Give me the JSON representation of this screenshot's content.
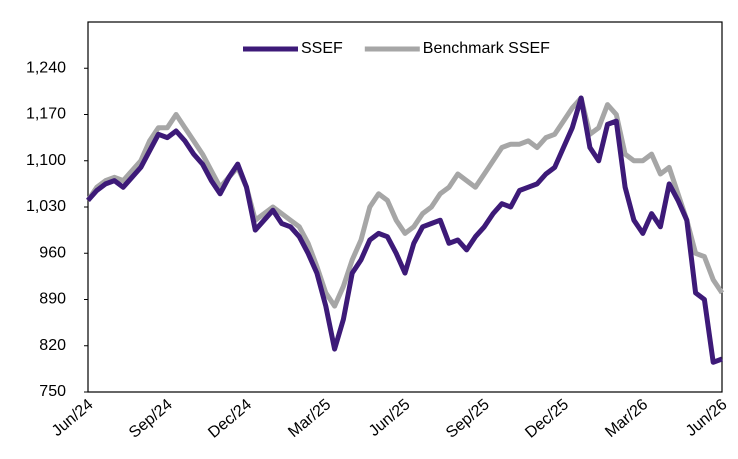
{
  "chart_data": {
    "type": "line",
    "categories": [
      "Jun/24",
      null,
      null,
      null,
      null,
      null,
      null,
      null,
      null,
      "Sep/24",
      null,
      null,
      null,
      null,
      null,
      null,
      null,
      null,
      "Dec/24",
      null,
      null,
      null,
      null,
      null,
      null,
      null,
      null,
      "Mar/25",
      null,
      null,
      null,
      null,
      null,
      null,
      null,
      null,
      "Jun/25",
      null,
      null,
      null,
      null,
      null,
      null,
      null,
      null,
      "Sep/25",
      null,
      null,
      null,
      null,
      null,
      null,
      null,
      null,
      "Dec/25",
      null,
      null,
      null,
      null,
      null,
      null,
      null,
      null,
      "Mar/26",
      null,
      null,
      null,
      null,
      null,
      null,
      null,
      null,
      "Jun/26"
    ],
    "series": [
      {
        "name": "SSEF",
        "color": "#3d1a78",
        "values": [
          1040,
          1055,
          1065,
          1070,
          1060,
          1075,
          1090,
          1115,
          1140,
          1135,
          1145,
          1130,
          1110,
          1095,
          1070,
          1050,
          1075,
          1095,
          1060,
          995,
          1010,
          1025,
          1005,
          1000,
          985,
          960,
          930,
          880,
          815,
          860,
          930,
          950,
          980,
          990,
          985,
          960,
          930,
          975,
          1000,
          1005,
          1010,
          975,
          980,
          965,
          985,
          1000,
          1020,
          1035,
          1030,
          1055,
          1060,
          1065,
          1080,
          1090,
          1120,
          1150,
          1195,
          1120,
          1100,
          1155,
          1160,
          1060,
          1010,
          990,
          1020,
          1000,
          1065,
          1040,
          1010,
          900,
          890,
          795,
          800
        ]
      },
      {
        "name": "Benchmark SSEF",
        "color": "#a6a6a6",
        "values": [
          1040,
          1060,
          1070,
          1075,
          1070,
          1085,
          1100,
          1130,
          1150,
          1150,
          1170,
          1150,
          1130,
          1110,
          1085,
          1060,
          1075,
          1090,
          1060,
          1010,
          1020,
          1030,
          1020,
          1010,
          1000,
          975,
          940,
          900,
          880,
          910,
          950,
          980,
          1030,
          1050,
          1040,
          1010,
          990,
          1000,
          1020,
          1030,
          1050,
          1060,
          1080,
          1070,
          1060,
          1080,
          1100,
          1120,
          1125,
          1125,
          1130,
          1120,
          1135,
          1140,
          1160,
          1180,
          1195,
          1140,
          1150,
          1185,
          1170,
          1110,
          1100,
          1100,
          1110,
          1080,
          1090,
          1050,
          1010,
          960,
          955,
          920,
          900
        ]
      }
    ],
    "ylim": [
      750,
      1310
    ],
    "yticks": [
      750,
      820,
      890,
      960,
      {
        "value": 1030,
        "label": "1,030"
      },
      {
        "value": 1100,
        "label": "1,100"
      },
      {
        "value": 1170,
        "label": "1,170"
      },
      {
        "value": 1240,
        "label": "1,240"
      }
    ],
    "legend": "top"
  }
}
